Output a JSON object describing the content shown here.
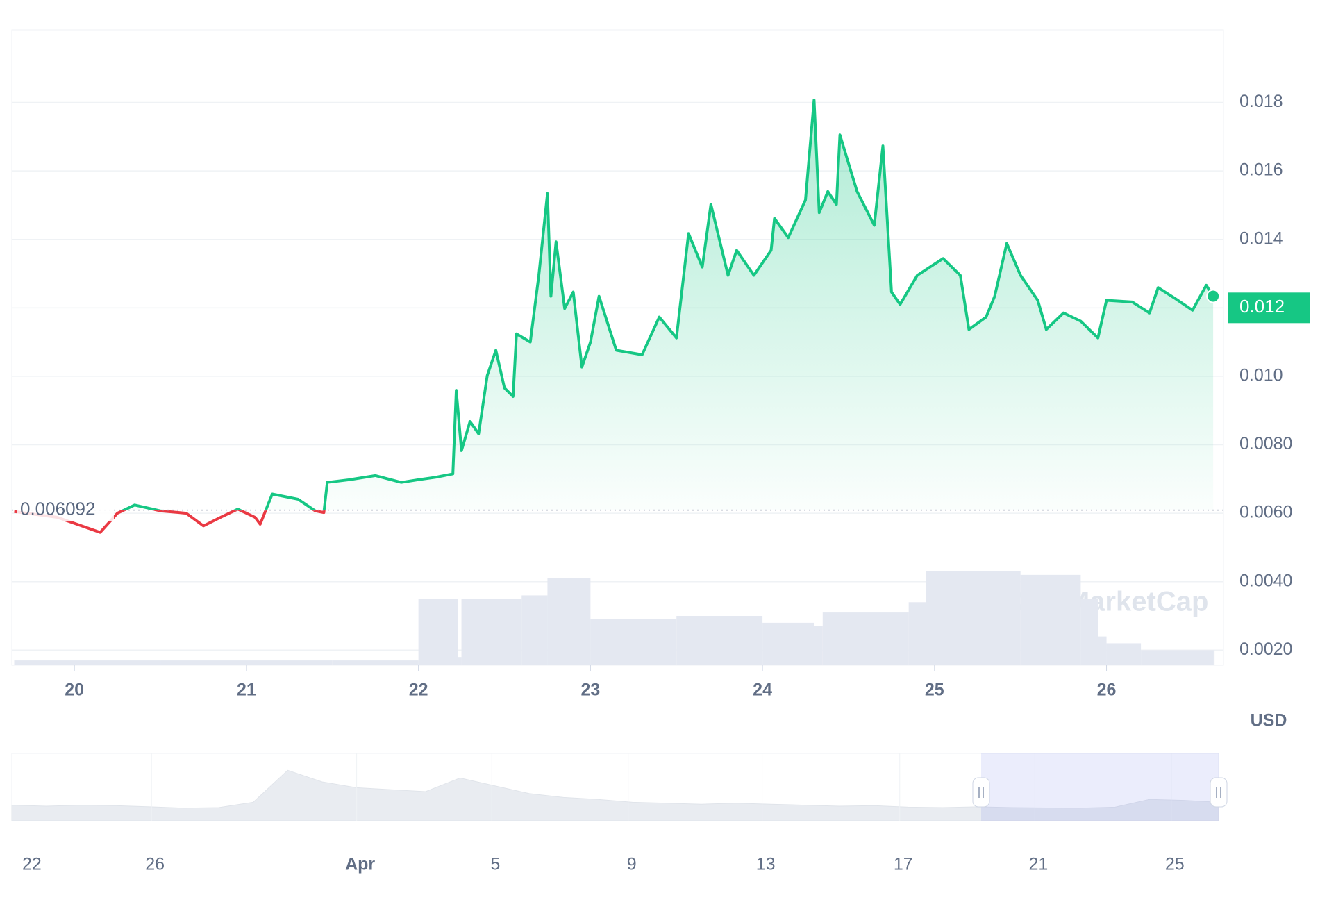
{
  "chart_data": {
    "type": "line",
    "color": "#16c784",
    "down_color": "#ea3943",
    "grid": true,
    "baseline": 0.006092,
    "current_price": 0.012,
    "currency": "USD",
    "watermark": "CoinMarketCap",
    "x": [
      19.65,
      19.9,
      20.15,
      20.25,
      20.35,
      20.5,
      20.65,
      20.75,
      20.85,
      20.95,
      21.05,
      21.08,
      21.15,
      21.3,
      21.4,
      21.45,
      21.47,
      21.6,
      21.75,
      21.9,
      22.0,
      22.1,
      22.2,
      22.22,
      22.25,
      22.3,
      22.35,
      22.4,
      22.45,
      22.5,
      22.55,
      22.57,
      22.65,
      22.7,
      22.75,
      22.77,
      22.8,
      22.85,
      22.9,
      22.95,
      23.0,
      23.05,
      23.15,
      23.3,
      23.4,
      23.5,
      23.57,
      23.65,
      23.7,
      23.8,
      23.85,
      23.95,
      24.05,
      24.07,
      24.15,
      24.25,
      24.3,
      24.33,
      24.38,
      24.43,
      24.45,
      24.55,
      24.65,
      24.7,
      24.75,
      24.8,
      24.9,
      25.05,
      25.15,
      25.2,
      25.3,
      25.35,
      25.42,
      25.5,
      25.6,
      25.65,
      25.75,
      25.85,
      25.95,
      26.0,
      26.15,
      26.25,
      26.3,
      26.4,
      26.5,
      26.58,
      26.62
    ],
    "values": [
      0.00605,
      0.00588,
      0.00544,
      0.006,
      0.00624,
      0.00607,
      0.006,
      0.00563,
      0.00588,
      0.00612,
      0.00588,
      0.00568,
      0.00656,
      0.00641,
      0.00607,
      0.00602,
      0.0069,
      0.00698,
      0.0071,
      0.0069,
      0.00698,
      0.00705,
      0.00715,
      0.00959,
      0.00783,
      0.00868,
      0.00832,
      0.01002,
      0.01076,
      0.00966,
      0.00941,
      0.01124,
      0.011,
      0.01295,
      0.01534,
      0.01234,
      0.01393,
      0.01198,
      0.01246,
      0.01027,
      0.011,
      0.01234,
      0.01076,
      0.01063,
      0.01173,
      0.01112,
      0.01417,
      0.01319,
      0.01502,
      0.01295,
      0.01368,
      0.01295,
      0.01368,
      0.01461,
      0.01405,
      0.01515,
      0.01807,
      0.01478,
      0.0154,
      0.01502,
      0.01705,
      0.0154,
      0.01441,
      0.01673,
      0.01246,
      0.0121,
      0.01295,
      0.01344,
      0.01295,
      0.01137,
      0.01173,
      0.01234,
      0.01388,
      0.01295,
      0.01222,
      0.01137,
      0.01185,
      0.01161,
      0.01112,
      0.01222,
      0.01217,
      0.01185,
      0.01259,
      0.01227,
      0.01193,
      0.01266,
      0.01234
    ],
    "volume": {
      "x": [
        19.65,
        20.5,
        21.5,
        21.95,
        22.0,
        22.23,
        22.25,
        22.6,
        22.75,
        22.95,
        23.0,
        23.5,
        24.0,
        24.3,
        24.35,
        24.7,
        24.85,
        24.95,
        25.5,
        25.85,
        25.95,
        26.0,
        26.2,
        26.62
      ],
      "values": [
        0.0017,
        0.0017,
        0.0017,
        0.0017,
        0.0035,
        0.0018,
        0.0035,
        0.0036,
        0.0041,
        0.0041,
        0.0029,
        0.003,
        0.0028,
        0.0027,
        0.0031,
        0.0031,
        0.0034,
        0.0043,
        0.0042,
        0.0035,
        0.0024,
        0.0022,
        0.002,
        0.002
      ]
    },
    "xlim": [
      19.636,
      26.68
    ],
    "xticks": [
      20,
      21,
      22,
      23,
      24,
      25,
      26
    ],
    "ylim": [
      0.00156,
      0.02012
    ],
    "yticks": [
      {
        "value": 0.002,
        "label": "0.0020"
      },
      {
        "value": 0.004,
        "label": "0.0040"
      },
      {
        "value": 0.006,
        "label": "0.0060"
      },
      {
        "value": 0.008,
        "label": "0.0080"
      },
      {
        "value": 0.01,
        "label": "0.010"
      },
      {
        "value": 0.012,
        "label": "0.012"
      },
      {
        "value": 0.014,
        "label": "0.014"
      },
      {
        "value": 0.016,
        "label": "0.016"
      },
      {
        "value": 0.018,
        "label": "0.018"
      }
    ],
    "navigator": {
      "values": [
        0.008,
        0.0075,
        0.008,
        0.0078,
        0.0072,
        0.0065,
        0.0068,
        0.0095,
        0.026,
        0.02,
        0.017,
        0.016,
        0.015,
        0.022,
        0.018,
        0.014,
        0.012,
        0.011,
        0.0095,
        0.009,
        0.0085,
        0.009,
        0.0085,
        0.008,
        0.0075,
        0.0078,
        0.007,
        0.0068,
        0.0072,
        0.0068,
        0.0066,
        0.0065,
        0.007,
        0.011,
        0.0105,
        0.0095
      ],
      "ticks": [
        "22",
        "26",
        "Apr",
        "5",
        "9",
        "13",
        "17",
        "21",
        "25"
      ]
    }
  }
}
